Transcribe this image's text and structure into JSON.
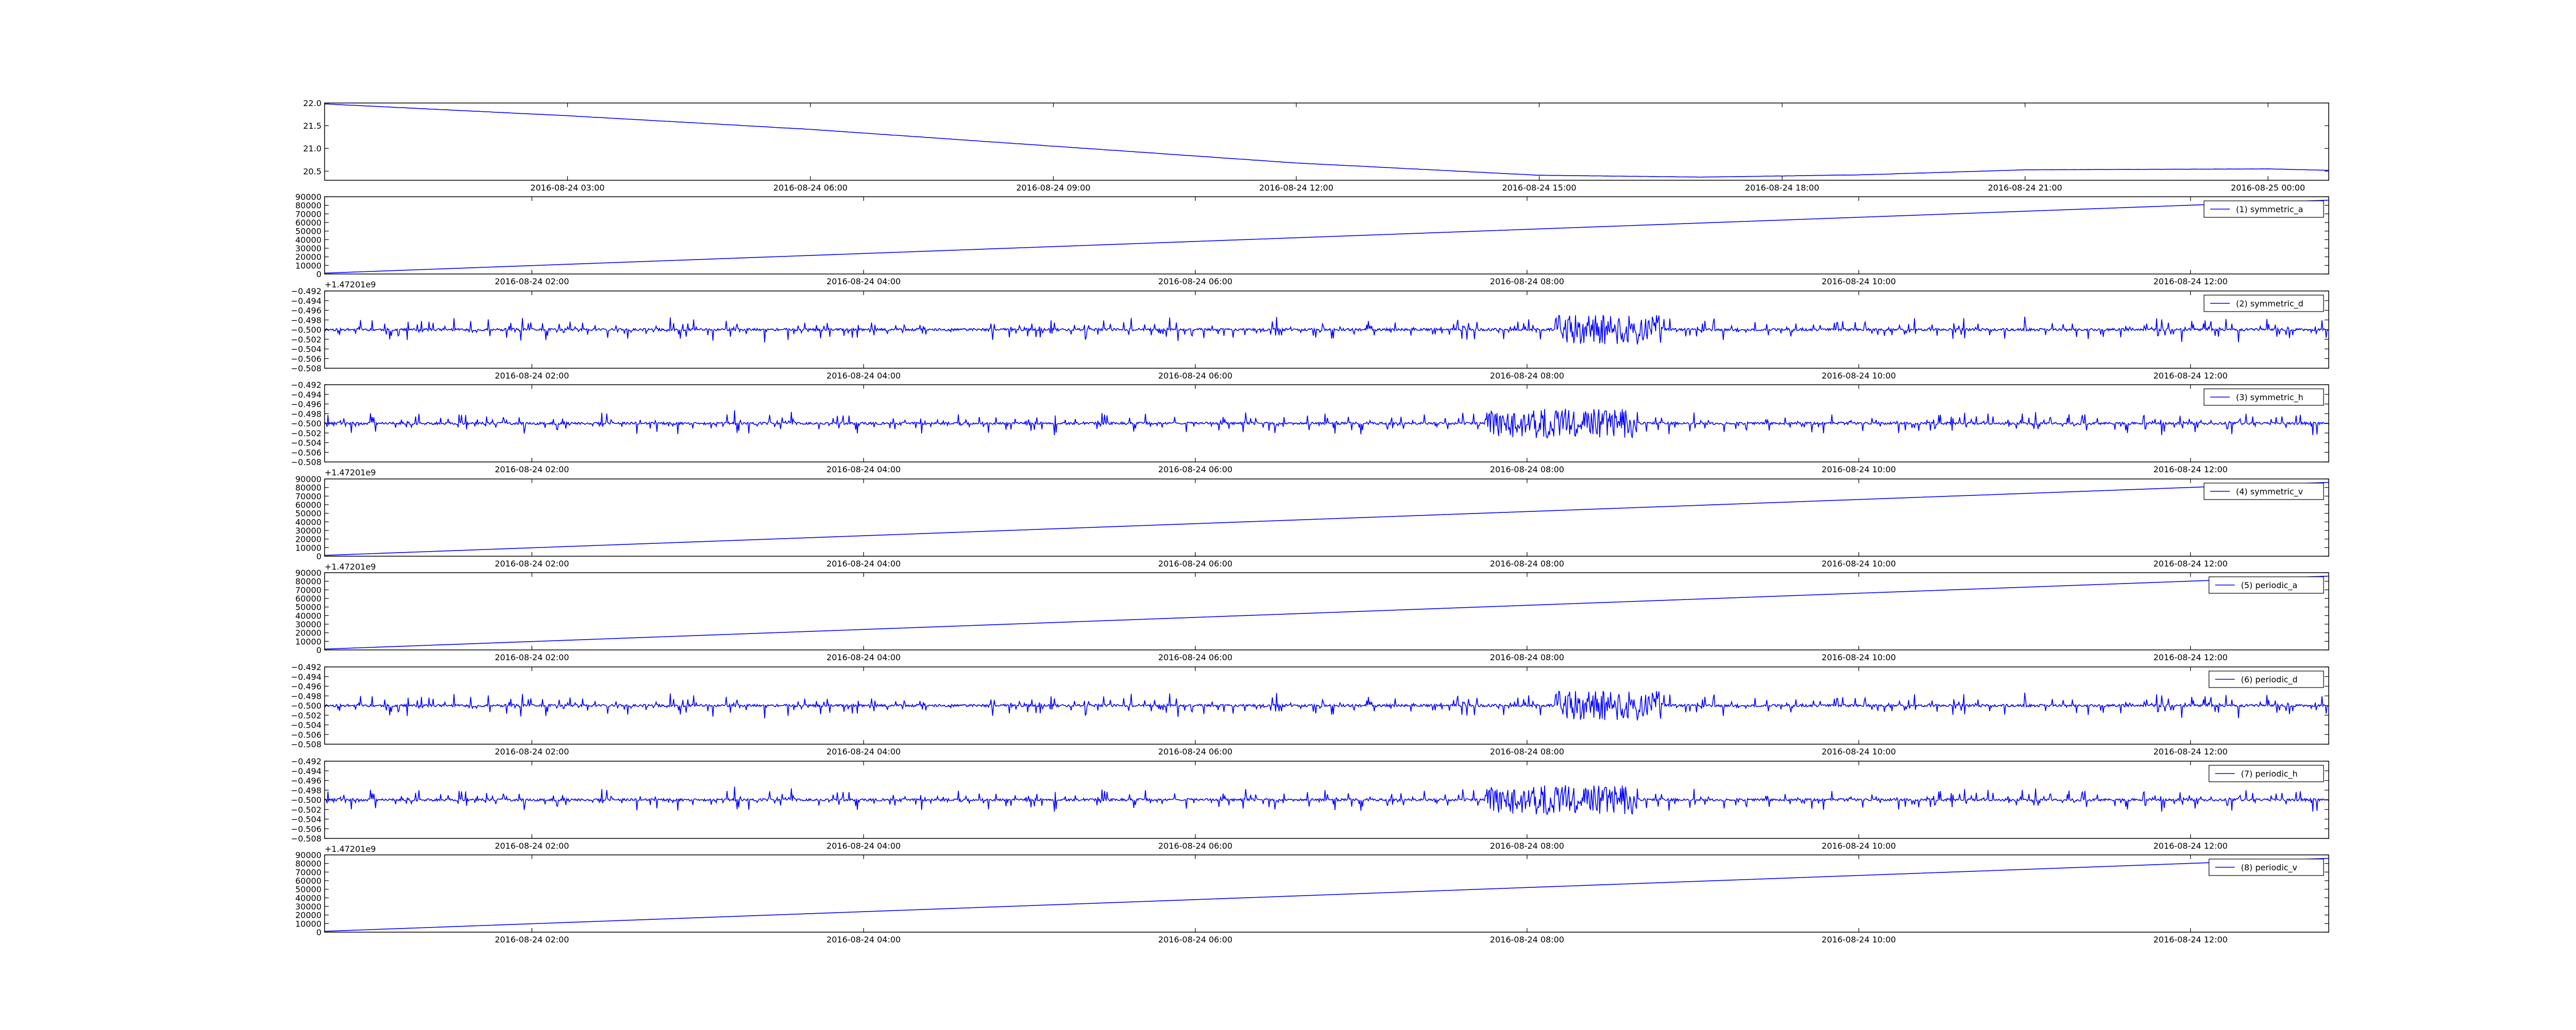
{
  "chart_data": [
    {
      "type": "line",
      "color": "#0000ff",
      "ylim": [
        20.3,
        22.0
      ],
      "yticks": [
        "20.5",
        "21.0",
        "21.5",
        "22.0"
      ],
      "ytick_values": [
        20.5,
        21.0,
        21.5,
        22.0
      ],
      "xlim": [
        "2016-08-24 00:00",
        "2016-08-25 00:45"
      ],
      "xticks": [
        "2016-08-24 03:00",
        "2016-08-24 06:00",
        "2016-08-24 09:00",
        "2016-08-24 12:00",
        "2016-08-24 15:00",
        "2016-08-24 18:00",
        "2016-08-24 21:00",
        "2016-08-25 00:00"
      ],
      "xtick_values": [
        "2016-08-24 03:00",
        "2016-08-24 06:00",
        "2016-08-24 09:00",
        "2016-08-24 12:00",
        "2016-08-24 15:00",
        "2016-08-24 18:00",
        "2016-08-24 21:00",
        "2016-08-25 00:00"
      ],
      "offset_text": "",
      "series": [
        {
          "x": [
            "2016-08-24 00:00",
            "2016-08-24 03:00",
            "2016-08-24 06:00",
            "2016-08-24 09:00",
            "2016-08-24 12:00",
            "2016-08-24 15:00",
            "2016-08-24 17:00",
            "2016-08-24 19:00",
            "2016-08-24 21:00",
            "2016-08-25 00:00",
            "2016-08-25 00:45"
          ],
          "values": [
            21.98,
            21.72,
            21.42,
            21.05,
            20.68,
            20.41,
            20.37,
            20.42,
            20.53,
            20.55,
            20.52
          ],
          "noise": 0.004
        }
      ],
      "legend": ""
    },
    {
      "type": "line",
      "color": "#0000ff",
      "ylim": [
        0,
        90000
      ],
      "yticks": [
        "0",
        "10000",
        "20000",
        "30000",
        "40000",
        "50000",
        "60000",
        "70000",
        "80000",
        "90000"
      ],
      "ytick_values": [
        0,
        10000,
        20000,
        30000,
        40000,
        50000,
        60000,
        70000,
        80000,
        90000
      ],
      "xlim": [
        "2016-08-24 00:45",
        "2016-08-24 12:50"
      ],
      "xticks": [
        "2016-08-24 02:00",
        "2016-08-24 04:00",
        "2016-08-24 06:00",
        "2016-08-24 08:00",
        "2016-08-24 10:00",
        "2016-08-24 12:00"
      ],
      "xtick_values": [
        "2016-08-24 02:00",
        "2016-08-24 04:00",
        "2016-08-24 06:00",
        "2016-08-24 08:00",
        "2016-08-24 10:00",
        "2016-08-24 12:00"
      ],
      "offset_text": "+1.47201e9",
      "series": [
        {
          "x": [
            "2016-08-24 00:45",
            "2016-08-24 12:50"
          ],
          "values": [
            1000,
            86000
          ],
          "noise": 0
        }
      ],
      "legend": "(1) symmetric_a"
    },
    {
      "type": "line",
      "color": "#0000ff",
      "ylim": [
        -0.508,
        -0.492
      ],
      "yticks": [
        "−0.508",
        "−0.506",
        "−0.504",
        "−0.502",
        "−0.500",
        "−0.498",
        "−0.496",
        "−0.494",
        "−0.492"
      ],
      "ytick_values": [
        -0.508,
        -0.506,
        -0.504,
        -0.502,
        -0.5,
        -0.498,
        -0.496,
        -0.494,
        -0.492
      ],
      "xlim": [
        "2016-08-24 00:45",
        "2016-08-24 12:50"
      ],
      "xticks": [
        "2016-08-24 02:00",
        "2016-08-24 04:00",
        "2016-08-24 06:00",
        "2016-08-24 08:00",
        "2016-08-24 10:00",
        "2016-08-24 12:00"
      ],
      "xtick_values": [
        "2016-08-24 02:00",
        "2016-08-24 04:00",
        "2016-08-24 06:00",
        "2016-08-24 08:00",
        "2016-08-24 10:00",
        "2016-08-24 12:00"
      ],
      "offset_text": "",
      "series": [
        {
          "center": -0.5,
          "amplitude": 0.0028,
          "burst": [
            "2016-08-24 08:10",
            "2016-08-24 08:50"
          ],
          "seed": 11
        }
      ],
      "legend": "(2) symmetric_d"
    },
    {
      "type": "line",
      "color": "#0000ff",
      "ylim": [
        -0.508,
        -0.492
      ],
      "yticks": [
        "−0.508",
        "−0.506",
        "−0.504",
        "−0.502",
        "−0.500",
        "−0.498",
        "−0.496",
        "−0.494",
        "−0.492"
      ],
      "ytick_values": [
        -0.508,
        -0.506,
        -0.504,
        -0.502,
        -0.5,
        -0.498,
        -0.496,
        -0.494,
        -0.492
      ],
      "xlim": [
        "2016-08-24 00:45",
        "2016-08-24 12:50"
      ],
      "xticks": [
        "2016-08-24 02:00",
        "2016-08-24 04:00",
        "2016-08-24 06:00",
        "2016-08-24 08:00",
        "2016-08-24 10:00",
        "2016-08-24 12:00"
      ],
      "xtick_values": [
        "2016-08-24 02:00",
        "2016-08-24 04:00",
        "2016-08-24 06:00",
        "2016-08-24 08:00",
        "2016-08-24 10:00",
        "2016-08-24 12:00"
      ],
      "offset_text": "+1.47201e9",
      "series": [
        {
          "center": -0.5,
          "amplitude": 0.0028,
          "burst": [
            "2016-08-24 07:45",
            "2016-08-24 08:40"
          ],
          "seed": 29
        }
      ],
      "legend": "(3) symmetric_h"
    },
    {
      "type": "line",
      "color": "#0000ff",
      "ylim": [
        0,
        90000
      ],
      "yticks": [
        "0",
        "10000",
        "20000",
        "30000",
        "40000",
        "50000",
        "60000",
        "70000",
        "80000",
        "90000"
      ],
      "ytick_values": [
        0,
        10000,
        20000,
        30000,
        40000,
        50000,
        60000,
        70000,
        80000,
        90000
      ],
      "xlim": [
        "2016-08-24 00:45",
        "2016-08-24 12:50"
      ],
      "xticks": [
        "2016-08-24 02:00",
        "2016-08-24 04:00",
        "2016-08-24 06:00",
        "2016-08-24 08:00",
        "2016-08-24 10:00",
        "2016-08-24 12:00"
      ],
      "xtick_values": [
        "2016-08-24 02:00",
        "2016-08-24 04:00",
        "2016-08-24 06:00",
        "2016-08-24 08:00",
        "2016-08-24 10:00",
        "2016-08-24 12:00"
      ],
      "offset_text": "+1.47201e9",
      "series": [
        {
          "x": [
            "2016-08-24 00:45",
            "2016-08-24 12:50"
          ],
          "values": [
            1000,
            86000
          ],
          "noise": 0
        }
      ],
      "legend": "(4) symmetric_v"
    },
    {
      "type": "line",
      "color": "#0000ff",
      "ylim": [
        0,
        90000
      ],
      "yticks": [
        "0",
        "10000",
        "20000",
        "30000",
        "40000",
        "50000",
        "60000",
        "70000",
        "80000",
        "90000"
      ],
      "ytick_values": [
        0,
        10000,
        20000,
        30000,
        40000,
        50000,
        60000,
        70000,
        80000,
        90000
      ],
      "xlim": [
        "2016-08-24 00:45",
        "2016-08-24 12:50"
      ],
      "xticks": [
        "2016-08-24 02:00",
        "2016-08-24 04:00",
        "2016-08-24 06:00",
        "2016-08-24 08:00",
        "2016-08-24 10:00",
        "2016-08-24 12:00"
      ],
      "xtick_values": [
        "2016-08-24 02:00",
        "2016-08-24 04:00",
        "2016-08-24 06:00",
        "2016-08-24 08:00",
        "2016-08-24 10:00",
        "2016-08-24 12:00"
      ],
      "offset_text": "",
      "series": [
        {
          "x": [
            "2016-08-24 00:45",
            "2016-08-24 12:50"
          ],
          "values": [
            1000,
            86000
          ],
          "noise": 0
        }
      ],
      "legend": "(5) periodic_a"
    },
    {
      "type": "line",
      "color": "#0000ff",
      "ylim": [
        -0.508,
        -0.492
      ],
      "yticks": [
        "−0.508",
        "−0.506",
        "−0.504",
        "−0.502",
        "−0.500",
        "−0.498",
        "−0.496",
        "−0.494",
        "−0.492"
      ],
      "ytick_values": [
        -0.508,
        -0.506,
        -0.504,
        -0.502,
        -0.5,
        -0.498,
        -0.496,
        -0.494,
        -0.492
      ],
      "xlim": [
        "2016-08-24 00:45",
        "2016-08-24 12:50"
      ],
      "xticks": [
        "2016-08-24 02:00",
        "2016-08-24 04:00",
        "2016-08-24 06:00",
        "2016-08-24 08:00",
        "2016-08-24 10:00",
        "2016-08-24 12:00"
      ],
      "xtick_values": [
        "2016-08-24 02:00",
        "2016-08-24 04:00",
        "2016-08-24 06:00",
        "2016-08-24 08:00",
        "2016-08-24 10:00",
        "2016-08-24 12:00"
      ],
      "offset_text": "",
      "series": [
        {
          "center": -0.5,
          "amplitude": 0.0028,
          "burst": [
            "2016-08-24 08:10",
            "2016-08-24 08:50"
          ],
          "seed": 11
        }
      ],
      "legend": "(6) periodic_d"
    },
    {
      "type": "line",
      "color": "#0000ff",
      "ylim": [
        -0.508,
        -0.492
      ],
      "yticks": [
        "−0.508",
        "−0.506",
        "−0.504",
        "−0.502",
        "−0.500",
        "−0.498",
        "−0.496",
        "−0.494",
        "−0.492"
      ],
      "ytick_values": [
        -0.508,
        -0.506,
        -0.504,
        -0.502,
        -0.5,
        -0.498,
        -0.496,
        -0.494,
        -0.492
      ],
      "xlim": [
        "2016-08-24 00:45",
        "2016-08-24 12:50"
      ],
      "xticks": [
        "2016-08-24 02:00",
        "2016-08-24 04:00",
        "2016-08-24 06:00",
        "2016-08-24 08:00",
        "2016-08-24 10:00",
        "2016-08-24 12:00"
      ],
      "xtick_values": [
        "2016-08-24 02:00",
        "2016-08-24 04:00",
        "2016-08-24 06:00",
        "2016-08-24 08:00",
        "2016-08-24 10:00",
        "2016-08-24 12:00"
      ],
      "offset_text": "+1.47201e9",
      "series": [
        {
          "center": -0.5,
          "amplitude": 0.0028,
          "burst": [
            "2016-08-24 07:45",
            "2016-08-24 08:40"
          ],
          "seed": 29
        }
      ],
      "legend": "(7) periodic_h"
    },
    {
      "type": "line",
      "color": "#0000ff",
      "ylim": [
        0,
        90000
      ],
      "yticks": [
        "0",
        "10000",
        "20000",
        "30000",
        "40000",
        "50000",
        "60000",
        "70000",
        "80000",
        "90000"
      ],
      "ytick_values": [
        0,
        10000,
        20000,
        30000,
        40000,
        50000,
        60000,
        70000,
        80000,
        90000
      ],
      "xlim": [
        "2016-08-24 00:45",
        "2016-08-24 12:50"
      ],
      "xticks": [
        "2016-08-24 02:00",
        "2016-08-24 04:00",
        "2016-08-24 06:00",
        "2016-08-24 08:00",
        "2016-08-24 10:00",
        "2016-08-24 12:00"
      ],
      "xtick_values": [
        "2016-08-24 02:00",
        "2016-08-24 04:00",
        "2016-08-24 06:00",
        "2016-08-24 08:00",
        "2016-08-24 10:00",
        "2016-08-24 12:00"
      ],
      "offset_text": "",
      "series": [
        {
          "x": [
            "2016-08-24 00:45",
            "2016-08-24 12:50"
          ],
          "values": [
            1000,
            86000
          ],
          "noise": 0
        }
      ],
      "legend": "(8) periodic_v"
    }
  ]
}
